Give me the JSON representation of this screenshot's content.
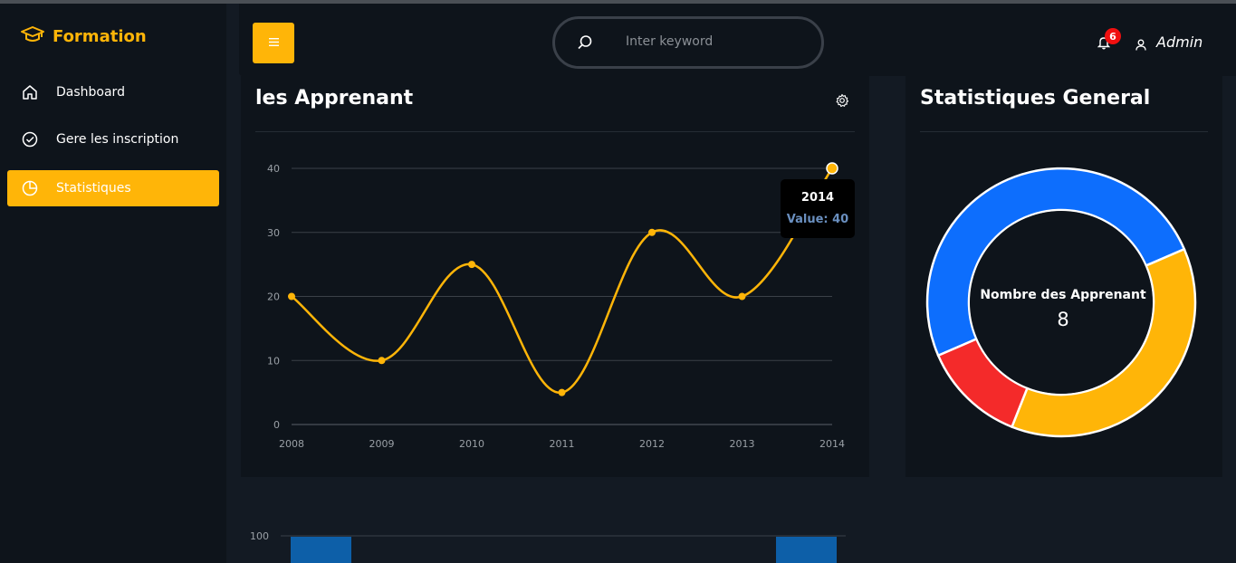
{
  "sidebar": {
    "brand": "Formation",
    "items": [
      {
        "label": "Dashboard",
        "icon": "home-icon"
      },
      {
        "label": "Gere les inscription",
        "icon": "check-circle-icon"
      },
      {
        "label": "Statistiques",
        "icon": "pie-chart-icon",
        "active": true
      }
    ]
  },
  "header": {
    "menu_icon": "hamburger-icon",
    "search_placeholder": "Inter keyword",
    "notification_count": "6",
    "user_name": "Admin"
  },
  "colors": {
    "accent": "#ffb508",
    "blue": "#0d6efd",
    "red": "#f42a2a",
    "background": "#131a23",
    "card": "#0e141b"
  },
  "line_card": {
    "title": "les Apprenant",
    "tooltip": {
      "year": "2014",
      "value": "Value: 40"
    }
  },
  "donut_card": {
    "title": "Statistiques General",
    "center_label": "Nombre des Apprenant",
    "center_value": "8"
  },
  "chart_data": [
    {
      "type": "line",
      "x": [
        "2008",
        "2009",
        "2010",
        "2011",
        "2012",
        "2013",
        "2014"
      ],
      "series": [
        {
          "values": [
            20,
            10,
            25,
            5,
            30,
            20,
            40
          ],
          "color": "#ffb508"
        }
      ],
      "yticks": [
        0,
        10,
        20,
        30,
        40
      ],
      "ylim": [
        0,
        40
      ],
      "grid": true
    },
    {
      "type": "pie",
      "donut": true,
      "slices": [
        {
          "value": 50,
          "color": "#0d6efd"
        },
        {
          "value": 37.5,
          "color": "#ffb508"
        },
        {
          "value": 12.5,
          "color": "#f42a2a"
        }
      ]
    },
    {
      "type": "bar",
      "yticks": [
        100
      ],
      "partial": true,
      "bar_color": "#0d5fa8"
    }
  ]
}
